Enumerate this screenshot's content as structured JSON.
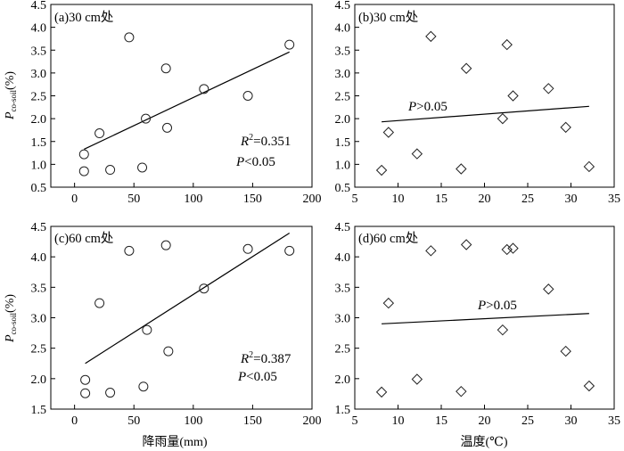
{
  "chart_data": [
    {
      "type": "scatter",
      "title": "(a)30 cm处",
      "ylabel": "P_co-soil(%)",
      "ylabel_main": "P",
      "ylabel_sub": "co-soil",
      "ylabel_unit": "(%)",
      "xlabel": "",
      "xlim": [
        -20,
        200
      ],
      "ylim": [
        0.5,
        4.5
      ],
      "xticks": [
        0,
        50,
        100,
        150,
        200
      ],
      "yticks": [
        0.5,
        1.0,
        1.5,
        2.0,
        2.5,
        3.0,
        3.5,
        4.0,
        4.5
      ],
      "marker": "circle",
      "x": [
        8,
        8,
        21,
        30,
        46,
        57,
        60,
        77,
        78,
        109,
        146,
        181
      ],
      "y": [
        1.22,
        0.85,
        1.68,
        0.88,
        3.78,
        0.93,
        2.0,
        3.1,
        1.8,
        2.65,
        2.5,
        3.62
      ],
      "fit": {
        "x": [
          8,
          181
        ],
        "y": [
          1.33,
          3.46
        ]
      },
      "annotations": {
        "r2_label": "R",
        "r2_sup": "2",
        "r2_value": "=0.351",
        "p_label": "P",
        "p_text": "<0.05"
      }
    },
    {
      "type": "scatter",
      "title": "(b)30 cm处",
      "xlabel": "",
      "ylabel": "",
      "xlim": [
        5,
        35
      ],
      "ylim": [
        0.5,
        4.5
      ],
      "xticks": [
        5,
        10,
        15,
        20,
        25,
        30,
        35
      ],
      "yticks": [
        0.5,
        1.0,
        1.5,
        2.0,
        2.5,
        3.0,
        3.5,
        4.0,
        4.5
      ],
      "marker": "diamond",
      "x": [
        8.1,
        8.9,
        12.2,
        13.8,
        17.3,
        17.9,
        22.1,
        22.6,
        23.3,
        27.4,
        29.4,
        32.1
      ],
      "y": [
        0.87,
        1.7,
        1.23,
        3.8,
        0.9,
        3.1,
        2.0,
        3.62,
        2.5,
        2.66,
        1.81,
        0.95
      ],
      "fit": {
        "x": [
          8.1,
          32.1
        ],
        "y": [
          1.93,
          2.27
        ]
      },
      "annotations": {
        "p_label": "P",
        "p_text": ">0.05"
      }
    },
    {
      "type": "scatter",
      "title": "(c)60 cm处",
      "ylabel": "P_co-soil(%)",
      "ylabel_main": "P",
      "ylabel_sub": "co-soil",
      "ylabel_unit": "(%)",
      "xlabel": "降雨量(mm)",
      "xlim": [
        -20,
        200
      ],
      "ylim": [
        1.5,
        4.5
      ],
      "xticks": [
        0,
        50,
        100,
        150,
        200
      ],
      "yticks": [
        1.5,
        2.0,
        2.5,
        3.0,
        3.5,
        4.0,
        4.5
      ],
      "marker": "circle",
      "x": [
        9,
        9,
        21,
        30,
        46,
        58,
        61,
        77,
        79,
        109,
        146,
        181
      ],
      "y": [
        1.98,
        1.76,
        3.24,
        1.77,
        4.1,
        1.87,
        2.8,
        4.19,
        2.45,
        3.48,
        4.13,
        4.1
      ],
      "fit": {
        "x": [
          9,
          181
        ],
        "y": [
          2.25,
          4.39
        ]
      },
      "annotations": {
        "r2_label": "R",
        "r2_sup": "2",
        "r2_value": "=0.387",
        "p_label": "P",
        "p_text": "<0.05"
      }
    },
    {
      "type": "scatter",
      "title": "(d)60 cm处",
      "xlabel": "温度(℃)",
      "ylabel": "",
      "xlim": [
        5,
        35
      ],
      "ylim": [
        1.5,
        4.5
      ],
      "xticks": [
        5,
        10,
        15,
        20,
        25,
        30,
        35
      ],
      "yticks": [
        1.5,
        2.0,
        2.5,
        3.0,
        3.5,
        4.0,
        4.5
      ],
      "marker": "diamond",
      "x": [
        8.1,
        8.9,
        12.2,
        13.8,
        17.3,
        17.9,
        22.1,
        22.6,
        23.3,
        27.4,
        29.4,
        32.1
      ],
      "y": [
        1.78,
        3.24,
        1.99,
        4.1,
        1.79,
        4.2,
        2.8,
        4.12,
        4.14,
        3.47,
        2.45,
        1.88
      ],
      "fit": {
        "x": [
          8.1,
          32.1
        ],
        "y": [
          2.9,
          3.07
        ]
      },
      "annotations": {
        "p_label": "P",
        "p_text": ">0.05"
      }
    }
  ]
}
